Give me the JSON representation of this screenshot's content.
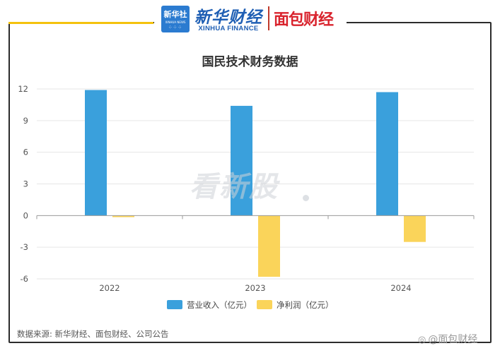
{
  "header": {
    "xinhuashe_cn": "新华社",
    "xinhuashe_en": "XINHUA NEWS",
    "brand_cn": "新华财经",
    "brand_en": "XINHUA FINANCE",
    "partner": "面包财经"
  },
  "colors": {
    "revenue": "#3aa0dc",
    "net_profit": "#fad45a",
    "accent": "#f4c20d",
    "frame": "#2c2c2c"
  },
  "chart_data": {
    "type": "bar",
    "title": "国民技术财务数据",
    "categories": [
      "2022",
      "2023",
      "2024"
    ],
    "series": [
      {
        "name": "营业收入（亿元）",
        "values": [
          11.9,
          10.4,
          11.7
        ]
      },
      {
        "name": "净利润（亿元）",
        "values": [
          -0.15,
          -5.8,
          -2.5
        ]
      }
    ],
    "ylim": [
      -6,
      12
    ],
    "yticks": [
      12,
      9,
      6,
      3,
      0,
      -3,
      -6
    ],
    "grid": true,
    "legend": "bottom"
  },
  "watermark": "看新股",
  "source": "数据来源: 新华财经、面包财经、公司公告",
  "weibo_handle": "@面包财经",
  "weibo_icon": "weibo-icon"
}
